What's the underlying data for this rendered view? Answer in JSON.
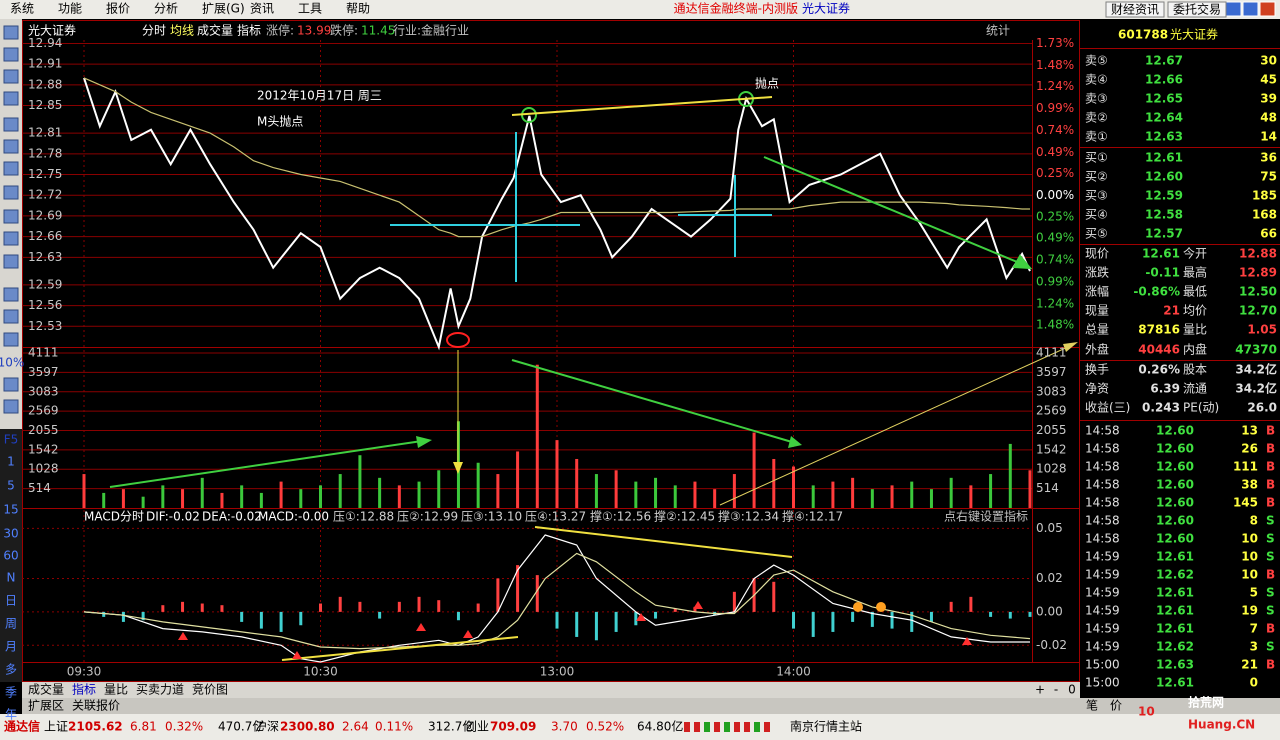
{
  "menu": [
    "系统",
    "功能",
    "报价",
    "分析",
    "扩展(G)",
    "资讯",
    "工具",
    "帮助"
  ],
  "window_title": "通达信金融终端-内测版",
  "broker": "光大证券",
  "top_buttons": [
    "财经资讯",
    "委托交易"
  ],
  "left_toolbar": [
    "10%",
    "F5",
    "1",
    "5",
    "15",
    "30",
    "60",
    "N",
    "日",
    "周",
    "月",
    "多",
    "季",
    "年"
  ],
  "chart_header": {
    "name": "光大证券",
    "items": [
      "分时",
      "均线",
      "成交量",
      "指标"
    ],
    "limit_up_label": "涨停:",
    "limit_up": "13.99",
    "limit_down_label": "跌停:",
    "limit_down": "11.45",
    "industry": "行业:金融行业",
    "stats": "统计"
  },
  "annotations": {
    "date": "2012年10月17日 周三",
    "pattern": "M头抛点",
    "sell_point": "抛点"
  },
  "indicator_header": {
    "items": [
      "MACD分时",
      "DIF:-0.02",
      "DEA:-0.02",
      "MACD:-0.00",
      "压①:12.88",
      "压②:12.99",
      "压③:13.10",
      "压④:13.27",
      "撑①:12.56",
      "撑②:12.45",
      "撑③:12.34",
      "撑④:12.17"
    ],
    "hint": "点右键设置指标"
  },
  "chart_data": [
    {
      "type": "line",
      "xlim": [
        0,
        240
      ],
      "xticks": [
        {
          "value": 0,
          "label": "09:30"
        },
        {
          "value": 60,
          "label": "10:30"
        },
        {
          "value": 120,
          "label": "13:00"
        },
        {
          "value": 180,
          "label": "14:00"
        }
      ],
      "ylim": [
        12.5,
        12.945
      ],
      "yticks": [
        12.94,
        12.91,
        12.88,
        12.85,
        12.81,
        12.78,
        12.75,
        12.72,
        12.69,
        12.66,
        12.63,
        12.59,
        12.56,
        12.53
      ],
      "y2lim": [
        -1.73,
        1.77
      ],
      "y2ticks": [
        {
          "value": 1.73,
          "label": "1.73%"
        },
        {
          "value": 1.48,
          "label": "1.48%"
        },
        {
          "value": 1.24,
          "label": "1.24%"
        },
        {
          "value": 0.99,
          "label": "0.99%"
        },
        {
          "value": 0.74,
          "label": "0.74%"
        },
        {
          "value": 0.49,
          "label": "0.49%"
        },
        {
          "value": 0.25,
          "label": "0.25%"
        },
        {
          "value": 0,
          "label": "0.00%"
        },
        {
          "value": -0.25,
          "label": "0.25%"
        },
        {
          "value": -0.49,
          "label": "0.49%"
        },
        {
          "value": -0.74,
          "label": "0.74%"
        },
        {
          "value": -0.99,
          "label": "0.99%"
        },
        {
          "value": -1.24,
          "label": "1.24%"
        },
        {
          "value": -1.48,
          "label": "1.48%"
        }
      ],
      "x": [
        0,
        4,
        8,
        12,
        17,
        22,
        27,
        32,
        38,
        43,
        48,
        55,
        60,
        65,
        70,
        75,
        80,
        85,
        90,
        93,
        95,
        98,
        101,
        106,
        109,
        113,
        116,
        121,
        126,
        131,
        134,
        139,
        144,
        149,
        154,
        159,
        164,
        166,
        168,
        172,
        175,
        179,
        184,
        192,
        202,
        207,
        212,
        219,
        222,
        229,
        234,
        238,
        240
      ],
      "series": [
        {
          "color": "#ffffff",
          "values": [
            12.89,
            12.82,
            12.87,
            12.8,
            12.815,
            12.765,
            12.815,
            12.765,
            12.71,
            12.67,
            12.615,
            12.665,
            12.645,
            12.57,
            12.6,
            12.615,
            12.6,
            12.57,
            12.5,
            12.585,
            12.53,
            12.57,
            12.66,
            12.715,
            12.745,
            12.835,
            12.75,
            12.71,
            12.72,
            12.67,
            12.63,
            12.66,
            12.7,
            12.68,
            12.66,
            12.685,
            12.715,
            12.815,
            12.86,
            12.82,
            12.83,
            12.71,
            12.735,
            12.75,
            12.78,
            12.72,
            12.68,
            12.615,
            12.645,
            12.685,
            12.6,
            12.635,
            12.61
          ]
        },
        {
          "color": "#c8c070",
          "values": [
            12.89,
            12.88,
            12.87,
            12.855,
            12.84,
            12.83,
            12.82,
            12.81,
            12.79,
            12.77,
            12.76,
            12.75,
            12.745,
            12.74,
            12.73,
            12.72,
            12.71,
            12.69,
            12.67,
            12.665,
            12.66,
            12.66,
            12.66,
            12.67,
            12.675,
            12.68,
            12.685,
            12.695,
            12.695,
            12.695,
            12.695,
            12.695,
            12.695,
            12.695,
            12.696,
            12.697,
            12.698,
            12.7,
            12.7,
            12.7,
            12.7,
            12.7,
            12.705,
            12.71,
            12.71,
            12.71,
            12.71,
            12.708,
            12.706,
            12.704,
            12.702,
            12.7,
            12.7
          ]
        }
      ]
    },
    {
      "type": "bar",
      "xlim": [
        0,
        240
      ],
      "ylim": [
        0,
        4270
      ],
      "yticks": [
        4111,
        3597,
        3083,
        2569,
        2055,
        1542,
        1028,
        514
      ],
      "x": [
        0,
        5,
        10,
        15,
        20,
        25,
        30,
        35,
        40,
        45,
        50,
        55,
        60,
        65,
        70,
        75,
        80,
        85,
        90,
        95,
        100,
        105,
        110,
        115,
        120,
        125,
        130,
        135,
        140,
        145,
        150,
        155,
        160,
        165,
        170,
        175,
        180,
        185,
        190,
        195,
        200,
        205,
        210,
        215,
        220,
        225,
        230,
        235,
        240
      ],
      "values": [
        900,
        400,
        500,
        300,
        600,
        500,
        800,
        400,
        600,
        400,
        700,
        500,
        600,
        900,
        1400,
        800,
        600,
        700,
        1000,
        2300,
        1200,
        900,
        1500,
        3800,
        1800,
        1300,
        900,
        1000,
        700,
        800,
        600,
        700,
        500,
        900,
        2000,
        1300,
        1100,
        600,
        700,
        800,
        500,
        600,
        700,
        500,
        800,
        600,
        900,
        1700,
        1000
      ],
      "colors": [
        "#ff3c3c",
        "#3cc83c",
        "#ff3c3c",
        "#3cc83c",
        "#3cc83c",
        "#ff3c3c",
        "#3cc83c",
        "#ff3c3c",
        "#3cc83c",
        "#3cc83c",
        "#ff3c3c",
        "#3cc83c",
        "#3cc83c",
        "#3cc83c",
        "#3cc83c",
        "#3cc83c",
        "#ff3c3c",
        "#3cc83c",
        "#3cc83c",
        "#3cc83c",
        "#3cc83c",
        "#ff3c3c",
        "#ff3c3c",
        "#ff3c3c",
        "#ff3c3c",
        "#ff3c3c",
        "#3cc83c",
        "#ff3c3c",
        "#3cc83c",
        "#3cc83c",
        "#3cc83c",
        "#ff3c3c",
        "#ff3c3c",
        "#ff3c3c",
        "#ff3c3c",
        "#ff3c3c",
        "#ff3c3c",
        "#3cc83c",
        "#ff3c3c",
        "#ff3c3c",
        "#3cc83c",
        "#ff3c3c",
        "#3cc83c",
        "#3cc83c",
        "#3cc83c",
        "#ff3c3c",
        "#3cc83c",
        "#3cc83c",
        "#ff3c3c"
      ]
    },
    {
      "type": "macd",
      "xlim": [
        0,
        240
      ],
      "ylim": [
        -0.03,
        0.052
      ],
      "yticks": [
        0.05,
        0.02,
        {
          "value": 0,
          "label": "0.00"
        },
        -0.02
      ],
      "x": [
        0,
        10,
        20,
        30,
        40,
        50,
        55,
        60,
        70,
        80,
        90,
        95,
        100,
        105,
        110,
        117,
        125,
        130,
        140,
        145,
        155,
        160,
        165,
        170,
        175,
        180,
        190,
        200,
        210,
        220,
        230,
        240
      ],
      "series": [
        {
          "color": "#ffffff",
          "values": [
            0,
            -0.002,
            -0.01,
            -0.012,
            -0.015,
            -0.02,
            -0.028,
            -0.03,
            -0.024,
            -0.02,
            -0.017,
            -0.02,
            -0.015,
            0,
            0.025,
            0.046,
            0.04,
            0.02,
            0,
            -0.008,
            -0.004,
            -0.002,
            0,
            0.02,
            0.028,
            0.022,
            0.005,
            -0.001,
            -0.005,
            -0.015,
            -0.018,
            -0.018
          ]
        },
        {
          "color": "#e0e0a0",
          "values": [
            0,
            -0.002,
            -0.006,
            -0.009,
            -0.012,
            -0.015,
            -0.018,
            -0.021,
            -0.022,
            -0.021,
            -0.02,
            -0.02,
            -0.019,
            -0.015,
            -0.005,
            0.02,
            0.035,
            0.03,
            0.012,
            0.004,
            0,
            -0.001,
            -0.001,
            0.01,
            0.022,
            0.025,
            0.012,
            0.003,
            -0.002,
            -0.01,
            -0.014,
            -0.016
          ]
        }
      ],
      "histogram": {
        "up_color": "#ff4040",
        "down_color": "#40d0d0",
        "x": [
          0,
          5,
          10,
          15,
          20,
          25,
          30,
          35,
          40,
          45,
          50,
          55,
          60,
          65,
          70,
          75,
          80,
          85,
          90,
          95,
          100,
          105,
          110,
          115,
          120,
          125,
          130,
          135,
          140,
          145,
          150,
          155,
          160,
          165,
          170,
          175,
          180,
          185,
          190,
          195,
          200,
          205,
          210,
          215,
          220,
          225,
          230,
          235,
          240
        ],
        "values": [
          0,
          -0.003,
          -0.006,
          -0.005,
          0.004,
          0.006,
          0.005,
          0.004,
          -0.006,
          -0.01,
          -0.012,
          -0.008,
          0.005,
          0.009,
          0.006,
          -0.004,
          0.006,
          0.009,
          0.007,
          -0.005,
          0.005,
          0.02,
          0.028,
          0.022,
          -0.01,
          -0.015,
          -0.017,
          -0.012,
          -0.008,
          -0.004,
          0.002,
          0.003,
          -0.002,
          0.012,
          0.02,
          0.018,
          -0.01,
          -0.015,
          -0.012,
          -0.006,
          -0.009,
          -0.01,
          -0.012,
          -0.006,
          0.006,
          0.009,
          -0.003,
          -0.004,
          -0.003
        ]
      }
    }
  ],
  "quote": {
    "code": "601788",
    "name": "光大证券",
    "sell": [
      [
        "卖⑤",
        "12.67",
        "30"
      ],
      [
        "卖④",
        "12.66",
        "45"
      ],
      [
        "卖③",
        "12.65",
        "39"
      ],
      [
        "卖②",
        "12.64",
        "48"
      ],
      [
        "卖①",
        "12.63",
        "14"
      ]
    ],
    "buy": [
      [
        "买①",
        "12.61",
        "36"
      ],
      [
        "买②",
        "12.60",
        "75"
      ],
      [
        "买③",
        "12.59",
        "185"
      ],
      [
        "买④",
        "12.58",
        "168"
      ],
      [
        "买⑤",
        "12.57",
        "66"
      ]
    ],
    "stats": [
      [
        "现价",
        "12.61",
        "今开",
        "12.88"
      ],
      [
        "涨跌",
        "-0.11",
        "最高",
        "12.89"
      ],
      [
        "涨幅",
        "-0.86%",
        "最低",
        "12.50"
      ],
      [
        "现量",
        "21",
        "均价",
        "12.70"
      ],
      [
        "总量",
        "87816",
        "量比",
        "1.05"
      ],
      [
        "外盘",
        "40446",
        "内盘",
        "47370"
      ],
      [
        "换手",
        "0.26%",
        "股本",
        "34.2亿"
      ],
      [
        "净资",
        "6.39",
        "流通",
        "34.2亿"
      ],
      [
        "收益(三)",
        "0.243",
        "PE(动)",
        "26.0"
      ]
    ],
    "ticks": [
      [
        "14:58",
        "12.60",
        "13",
        "B"
      ],
      [
        "14:58",
        "12.60",
        "26",
        "B"
      ],
      [
        "14:58",
        "12.60",
        "111",
        "B"
      ],
      [
        "14:58",
        "12.60",
        "38",
        "B"
      ],
      [
        "14:58",
        "12.60",
        "145",
        "B"
      ],
      [
        "14:58",
        "12.60",
        "8",
        "S"
      ],
      [
        "14:58",
        "12.60",
        "10",
        "S"
      ],
      [
        "14:59",
        "12.61",
        "10",
        "S"
      ],
      [
        "14:59",
        "12.62",
        "10",
        "B"
      ],
      [
        "14:59",
        "12.61",
        "5",
        "S"
      ],
      [
        "14:59",
        "12.61",
        "19",
        "S"
      ],
      [
        "14:59",
        "12.61",
        "7",
        "B"
      ],
      [
        "14:59",
        "12.62",
        "3",
        "S"
      ],
      [
        "15:00",
        "12.63",
        "21",
        "B"
      ],
      [
        "15:00",
        "12.61",
        "0",
        ""
      ]
    ]
  },
  "bottom_tabs": [
    "成交量",
    "指标",
    "量比",
    "买卖力道",
    "竞价图"
  ],
  "sub_tabs": [
    "扩展区",
    "关联报价"
  ],
  "zoom": [
    "+",
    "-",
    "0"
  ],
  "status_bar": {
    "brand": "通达信",
    "items": [
      [
        "上证",
        "2105.62",
        "6.81",
        "0.32%",
        "470.7亿"
      ],
      [
        "沪深",
        "2300.80",
        "2.64",
        "0.11%",
        "312.7亿"
      ],
      [
        "创业",
        "709.09",
        "3.70",
        "0.52%",
        "64.80亿"
      ]
    ],
    "server": "南京行情主站"
  },
  "right_tabs": [
    "笔",
    "价"
  ],
  "watermark": [
    "10",
    "拾荒网",
    "Huang.CN"
  ]
}
